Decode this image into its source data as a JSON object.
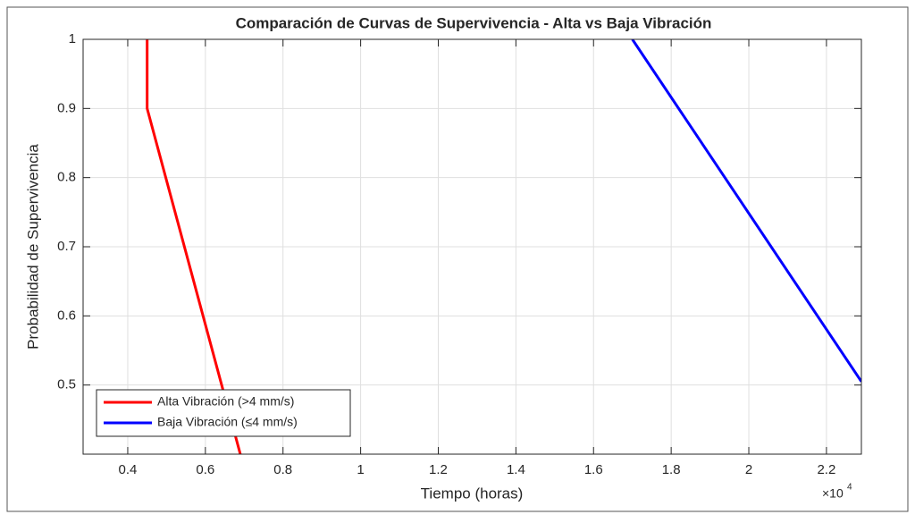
{
  "chart_data": {
    "type": "line",
    "title": "Comparación de Curvas de Supervivencia - Alta vs Baja Vibración",
    "x_label": "Tiempo (horas)",
    "y_label": "Probabilidad de Supervivencia",
    "x_exponent": {
      "base": "×10",
      "power": "4"
    },
    "series": [
      {
        "name": "Alta Vibración (>4 mm/s)",
        "color": "#ff0000",
        "x": [
          4500,
          4500,
          6900
        ],
        "values": [
          1,
          0.9,
          0.4
        ]
      },
      {
        "name": "Baja Vibración (≤4 mm/s)",
        "color": "#0000ff",
        "x": [
          17000,
          22900
        ],
        "values": [
          1,
          0.505
        ]
      }
    ],
    "xlim": [
      2850,
      22900
    ],
    "ylim": [
      0.4,
      1
    ],
    "xticks": [
      {
        "value": 4000,
        "label": "0.4"
      },
      {
        "value": 6000,
        "label": "0.6"
      },
      {
        "value": 8000,
        "label": "0.8"
      },
      {
        "value": 10000,
        "label": "1"
      },
      {
        "value": 12000,
        "label": "1.2"
      },
      {
        "value": 14000,
        "label": "1.4"
      },
      {
        "value": 16000,
        "label": "1.6"
      },
      {
        "value": 18000,
        "label": "1.8"
      },
      {
        "value": 20000,
        "label": "2"
      },
      {
        "value": 22000,
        "label": "2.2"
      }
    ],
    "yticks": [
      0.5,
      0.6,
      0.7,
      0.8,
      0.9,
      1
    ],
    "grid": true,
    "legend": "lower-left"
  }
}
